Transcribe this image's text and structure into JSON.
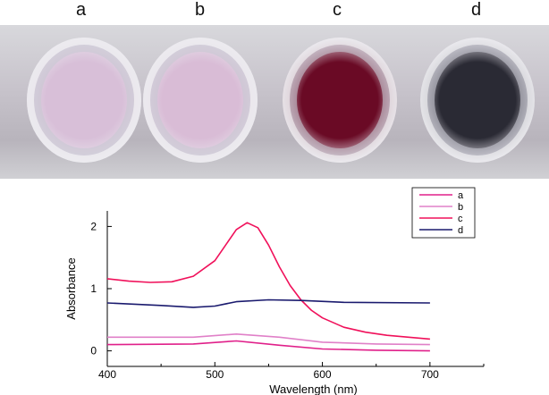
{
  "photo": {
    "labels": [
      "a",
      "b",
      "c",
      "d"
    ],
    "well_colors": [
      "#d8bfd8",
      "#d9bcd6",
      "#6a0a25",
      "#2a2a34"
    ]
  },
  "chart_data": {
    "type": "line",
    "title": "",
    "xlabel": "Wavelength (nm)",
    "ylabel": "Absorbance",
    "xlim": [
      400,
      750
    ],
    "ylim": [
      -0.25,
      2.25
    ],
    "xticks": [
      400,
      500,
      600,
      700
    ],
    "yticks": [
      0,
      1,
      2
    ],
    "grid": false,
    "legend": "top-right",
    "series": [
      {
        "name": "a",
        "color": "#e0208a",
        "x": [
          400,
          480,
          520,
          560,
          600,
          650,
          700
        ],
        "y": [
          0.1,
          0.11,
          0.16,
          0.09,
          0.03,
          0.01,
          0.0
        ]
      },
      {
        "name": "b",
        "color": "#e080c8",
        "x": [
          400,
          480,
          520,
          560,
          600,
          650,
          700
        ],
        "y": [
          0.22,
          0.22,
          0.27,
          0.22,
          0.14,
          0.11,
          0.1
        ]
      },
      {
        "name": "c",
        "color": "#f0105a",
        "x": [
          400,
          420,
          440,
          460,
          480,
          500,
          510,
          520,
          530,
          540,
          550,
          560,
          570,
          580,
          590,
          600,
          620,
          640,
          660,
          680,
          700
        ],
        "y": [
          1.16,
          1.12,
          1.1,
          1.11,
          1.2,
          1.45,
          1.7,
          1.95,
          2.06,
          1.98,
          1.7,
          1.35,
          1.05,
          0.82,
          0.65,
          0.53,
          0.38,
          0.3,
          0.25,
          0.22,
          0.19
        ]
      },
      {
        "name": "d",
        "color": "#1a1a6e",
        "x": [
          400,
          450,
          480,
          500,
          520,
          550,
          580,
          620,
          700
        ],
        "y": [
          0.77,
          0.73,
          0.7,
          0.72,
          0.79,
          0.82,
          0.81,
          0.78,
          0.77
        ]
      }
    ]
  }
}
